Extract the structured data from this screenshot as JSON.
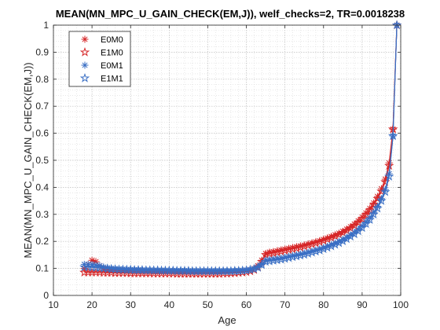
{
  "chart_data": {
    "type": "line",
    "title": "MEAN(MN_MPC_U_GAIN_CHECK(EM,J)), welf_checks=2, TR=0.0018238",
    "xlabel": "Age",
    "ylabel": "MEAN(MN_MPC_U_GAIN_CHECK(EM,J))",
    "xlim": [
      10,
      100
    ],
    "ylim": [
      0,
      1
    ],
    "xticks": [
      10,
      20,
      30,
      40,
      50,
      60,
      70,
      80,
      90,
      100
    ],
    "yticks": [
      0,
      0.1,
      0.2,
      0.3,
      0.4,
      0.5,
      0.6,
      0.7,
      0.8,
      0.9,
      1
    ],
    "xtick_labels": [
      "10",
      "20",
      "30",
      "40",
      "50",
      "60",
      "70",
      "80",
      "90",
      "100"
    ],
    "ytick_labels": [
      "0",
      "0.1",
      "0.2",
      "0.3",
      "0.4",
      "0.5",
      "0.6",
      "0.7",
      "0.8",
      "0.9",
      "1"
    ],
    "grid": true,
    "minor_grid": true,
    "legend_position": "top-left",
    "series": [
      {
        "name": "E0M0",
        "color": "#d62728",
        "marker": "asterisk",
        "x": [
          18,
          19,
          20,
          21,
          22,
          23,
          24,
          25,
          26,
          27,
          28,
          29,
          30,
          31,
          32,
          33,
          34,
          35,
          36,
          37,
          38,
          39,
          40,
          41,
          42,
          43,
          44,
          45,
          46,
          47,
          48,
          49,
          50,
          51,
          52,
          53,
          54,
          55,
          56,
          57,
          58,
          59,
          60,
          61,
          62,
          63,
          64,
          65,
          66,
          67,
          68,
          69,
          70,
          71,
          72,
          73,
          74,
          75,
          76,
          77,
          78,
          79,
          80,
          81,
          82,
          83,
          84,
          85,
          86,
          87,
          88,
          89,
          90,
          91,
          92,
          93,
          94,
          95,
          96,
          97,
          98,
          99
        ],
        "y": [
          0.1,
          0.115,
          0.13,
          0.125,
          0.11,
          0.1,
          0.095,
          0.095,
          0.094,
          0.093,
          0.093,
          0.092,
          0.092,
          0.091,
          0.091,
          0.09,
          0.09,
          0.09,
          0.09,
          0.09,
          0.089,
          0.089,
          0.089,
          0.088,
          0.088,
          0.088,
          0.088,
          0.087,
          0.087,
          0.087,
          0.087,
          0.087,
          0.087,
          0.087,
          0.087,
          0.087,
          0.087,
          0.087,
          0.088,
          0.088,
          0.089,
          0.09,
          0.092,
          0.095,
          0.1,
          0.11,
          0.13,
          0.155,
          0.16,
          0.162,
          0.165,
          0.168,
          0.171,
          0.174,
          0.177,
          0.18,
          0.183,
          0.186,
          0.19,
          0.194,
          0.198,
          0.202,
          0.207,
          0.212,
          0.218,
          0.224,
          0.23,
          0.237,
          0.245,
          0.254,
          0.264,
          0.276,
          0.29,
          0.305,
          0.322,
          0.342,
          0.366,
          0.395,
          0.43,
          0.49,
          0.615,
          1.0
        ]
      },
      {
        "name": "E1M0",
        "color": "#d62728",
        "marker": "pentagram",
        "x": [
          18,
          19,
          20,
          21,
          22,
          23,
          24,
          25,
          26,
          27,
          28,
          29,
          30,
          31,
          32,
          33,
          34,
          35,
          36,
          37,
          38,
          39,
          40,
          41,
          42,
          43,
          44,
          45,
          46,
          47,
          48,
          49,
          50,
          51,
          52,
          53,
          54,
          55,
          56,
          57,
          58,
          59,
          60,
          61,
          62,
          63,
          64,
          65,
          66,
          67,
          68,
          69,
          70,
          71,
          72,
          73,
          74,
          75,
          76,
          77,
          78,
          79,
          80,
          81,
          82,
          83,
          84,
          85,
          86,
          87,
          88,
          89,
          90,
          91,
          92,
          93,
          94,
          95,
          96,
          97,
          98,
          99
        ],
        "y": [
          0.085,
          0.085,
          0.085,
          0.085,
          0.085,
          0.084,
          0.084,
          0.084,
          0.083,
          0.083,
          0.083,
          0.083,
          0.082,
          0.082,
          0.082,
          0.082,
          0.082,
          0.082,
          0.081,
          0.081,
          0.081,
          0.081,
          0.081,
          0.081,
          0.08,
          0.08,
          0.08,
          0.08,
          0.08,
          0.08,
          0.08,
          0.08,
          0.08,
          0.08,
          0.08,
          0.08,
          0.081,
          0.081,
          0.082,
          0.083,
          0.084,
          0.085,
          0.087,
          0.09,
          0.095,
          0.105,
          0.125,
          0.15,
          0.155,
          0.157,
          0.16,
          0.163,
          0.166,
          0.169,
          0.172,
          0.175,
          0.178,
          0.182,
          0.186,
          0.19,
          0.194,
          0.198,
          0.203,
          0.208,
          0.213,
          0.219,
          0.225,
          0.232,
          0.24,
          0.249,
          0.258,
          0.27,
          0.283,
          0.298,
          0.315,
          0.335,
          0.358,
          0.385,
          0.42,
          0.48,
          0.615,
          1.0
        ]
      },
      {
        "name": "E0M1",
        "color": "#3a6fc4",
        "marker": "asterisk",
        "x": [
          18,
          19,
          20,
          21,
          22,
          23,
          24,
          25,
          26,
          27,
          28,
          29,
          30,
          31,
          32,
          33,
          34,
          35,
          36,
          37,
          38,
          39,
          40,
          41,
          42,
          43,
          44,
          45,
          46,
          47,
          48,
          49,
          50,
          51,
          52,
          53,
          54,
          55,
          56,
          57,
          58,
          59,
          60,
          61,
          62,
          63,
          64,
          65,
          66,
          67,
          68,
          69,
          70,
          71,
          72,
          73,
          74,
          75,
          76,
          77,
          78,
          79,
          80,
          81,
          82,
          83,
          84,
          85,
          86,
          87,
          88,
          89,
          90,
          91,
          92,
          93,
          94,
          95,
          96,
          97,
          98,
          99
        ],
        "y": [
          0.115,
          0.115,
          0.115,
          0.113,
          0.11,
          0.105,
          0.102,
          0.1,
          0.099,
          0.098,
          0.097,
          0.096,
          0.096,
          0.095,
          0.095,
          0.094,
          0.094,
          0.094,
          0.093,
          0.093,
          0.093,
          0.093,
          0.092,
          0.092,
          0.092,
          0.092,
          0.092,
          0.091,
          0.091,
          0.091,
          0.091,
          0.091,
          0.091,
          0.091,
          0.091,
          0.091,
          0.091,
          0.091,
          0.091,
          0.092,
          0.092,
          0.093,
          0.094,
          0.096,
          0.099,
          0.105,
          0.115,
          0.13,
          0.132,
          0.134,
          0.136,
          0.138,
          0.141,
          0.144,
          0.147,
          0.15,
          0.153,
          0.157,
          0.16,
          0.164,
          0.168,
          0.172,
          0.177,
          0.182,
          0.188,
          0.194,
          0.2,
          0.207,
          0.215,
          0.224,
          0.233,
          0.244,
          0.257,
          0.272,
          0.288,
          0.308,
          0.33,
          0.358,
          0.392,
          0.45,
          0.59,
          1.0
        ]
      },
      {
        "name": "E1M1",
        "color": "#3a6fc4",
        "marker": "pentagram",
        "x": [
          18,
          19,
          20,
          21,
          22,
          23,
          24,
          25,
          26,
          27,
          28,
          29,
          30,
          31,
          32,
          33,
          34,
          35,
          36,
          37,
          38,
          39,
          40,
          41,
          42,
          43,
          44,
          45,
          46,
          47,
          48,
          49,
          50,
          51,
          52,
          53,
          54,
          55,
          56,
          57,
          58,
          59,
          60,
          61,
          62,
          63,
          64,
          65,
          66,
          67,
          68,
          69,
          70,
          71,
          72,
          73,
          74,
          75,
          76,
          77,
          78,
          79,
          80,
          81,
          82,
          83,
          84,
          85,
          86,
          87,
          88,
          89,
          90,
          91,
          92,
          93,
          94,
          95,
          96,
          97,
          98,
          99
        ],
        "y": [
          0.105,
          0.105,
          0.104,
          0.103,
          0.102,
          0.1,
          0.099,
          0.098,
          0.097,
          0.096,
          0.096,
          0.095,
          0.095,
          0.094,
          0.094,
          0.094,
          0.093,
          0.093,
          0.093,
          0.093,
          0.092,
          0.092,
          0.092,
          0.092,
          0.091,
          0.091,
          0.091,
          0.091,
          0.09,
          0.09,
          0.09,
          0.09,
          0.09,
          0.09,
          0.09,
          0.09,
          0.09,
          0.09,
          0.09,
          0.091,
          0.091,
          0.092,
          0.093,
          0.095,
          0.098,
          0.103,
          0.113,
          0.125,
          0.127,
          0.129,
          0.131,
          0.133,
          0.136,
          0.139,
          0.142,
          0.145,
          0.148,
          0.151,
          0.155,
          0.159,
          0.163,
          0.167,
          0.172,
          0.177,
          0.182,
          0.188,
          0.194,
          0.201,
          0.209,
          0.218,
          0.227,
          0.238,
          0.25,
          0.265,
          0.28,
          0.3,
          0.322,
          0.35,
          0.383,
          0.44,
          0.59,
          1.0
        ]
      }
    ]
  }
}
